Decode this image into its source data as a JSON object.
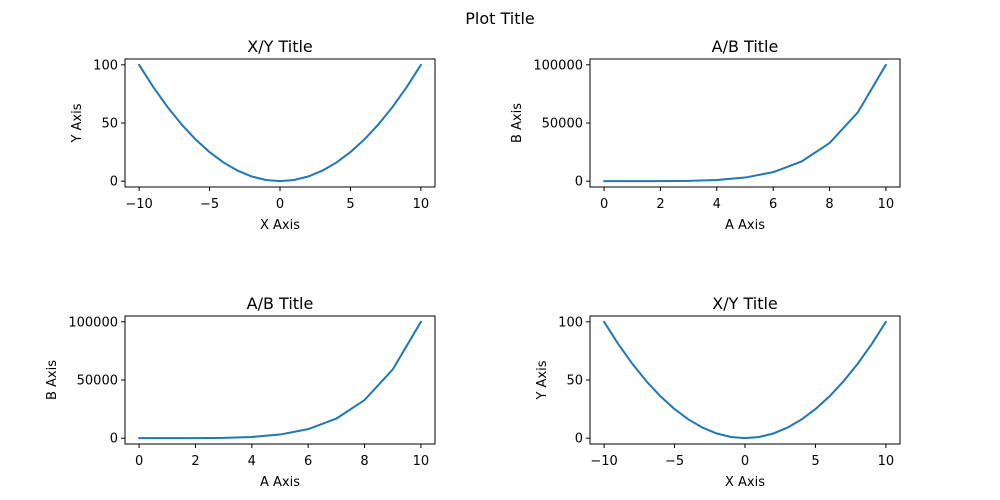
{
  "figure": {
    "suptitle": "Plot Title"
  },
  "colors": {
    "line": "#1f77b4",
    "axes": "#000000",
    "background": "#ffffff"
  },
  "chart_data": [
    {
      "type": "line",
      "title": "X/Y Title",
      "xlabel": "X Axis",
      "ylabel": "Y Axis",
      "xlim": [
        -11,
        11
      ],
      "ylim": [
        -5,
        105
      ],
      "xticks": [
        -10,
        -5,
        0,
        5,
        10
      ],
      "xtick_labels": [
        "−10",
        "−5",
        "0",
        "5",
        "10"
      ],
      "yticks": [
        0,
        50,
        100
      ],
      "ytick_labels": [
        "0",
        "50",
        "100"
      ],
      "grid": false,
      "series": [
        {
          "x": [
            -10,
            -9,
            -8,
            -7,
            -6,
            -5,
            -4,
            -3,
            -2,
            -1,
            0,
            1,
            2,
            3,
            4,
            5,
            6,
            7,
            8,
            9,
            10
          ],
          "y": [
            100,
            81,
            64,
            49,
            36,
            25,
            16,
            9,
            4,
            1,
            0,
            1,
            4,
            9,
            16,
            25,
            36,
            49,
            64,
            81,
            100
          ]
        }
      ]
    },
    {
      "type": "line",
      "title": "A/B Title",
      "xlabel": "A Axis",
      "ylabel": "B Axis",
      "xlim": [
        -0.5,
        10.5
      ],
      "ylim": [
        -5000,
        105000
      ],
      "xticks": [
        0,
        2,
        4,
        6,
        8,
        10
      ],
      "xtick_labels": [
        "0",
        "2",
        "4",
        "6",
        "8",
        "10"
      ],
      "yticks": [
        0,
        50000,
        100000
      ],
      "ytick_labels": [
        "0",
        "50000",
        "100000"
      ],
      "grid": false,
      "series": [
        {
          "x": [
            0,
            1,
            2,
            3,
            4,
            5,
            6,
            7,
            8,
            9,
            10
          ],
          "y": [
            0,
            1,
            32,
            243,
            1024,
            3125,
            7776,
            16807,
            32768,
            59049,
            100000
          ]
        }
      ]
    },
    {
      "type": "line",
      "title": "A/B Title",
      "xlabel": "A Axis",
      "ylabel": "B Axis",
      "xlim": [
        -0.5,
        10.5
      ],
      "ylim": [
        -5000,
        105000
      ],
      "xticks": [
        0,
        2,
        4,
        6,
        8,
        10
      ],
      "xtick_labels": [
        "0",
        "2",
        "4",
        "6",
        "8",
        "10"
      ],
      "yticks": [
        0,
        50000,
        100000
      ],
      "ytick_labels": [
        "0",
        "50000",
        "100000"
      ],
      "grid": false,
      "series": [
        {
          "x": [
            0,
            1,
            2,
            3,
            4,
            5,
            6,
            7,
            8,
            9,
            10
          ],
          "y": [
            0,
            1,
            32,
            243,
            1024,
            3125,
            7776,
            16807,
            32768,
            59049,
            100000
          ]
        }
      ]
    },
    {
      "type": "line",
      "title": "X/Y Title",
      "xlabel": "X Axis",
      "ylabel": "Y Axis",
      "xlim": [
        -11,
        11
      ],
      "ylim": [
        -5,
        105
      ],
      "xticks": [
        -10,
        -5,
        0,
        5,
        10
      ],
      "xtick_labels": [
        "−10",
        "−5",
        "0",
        "5",
        "10"
      ],
      "yticks": [
        0,
        50,
        100
      ],
      "ytick_labels": [
        "0",
        "50",
        "100"
      ],
      "grid": false,
      "series": [
        {
          "x": [
            -10,
            -9,
            -8,
            -7,
            -6,
            -5,
            -4,
            -3,
            -2,
            -1,
            0,
            1,
            2,
            3,
            4,
            5,
            6,
            7,
            8,
            9,
            10
          ],
          "y": [
            100,
            81,
            64,
            49,
            36,
            25,
            16,
            9,
            4,
            1,
            0,
            1,
            4,
            9,
            16,
            25,
            36,
            49,
            64,
            81,
            100
          ]
        }
      ]
    }
  ]
}
